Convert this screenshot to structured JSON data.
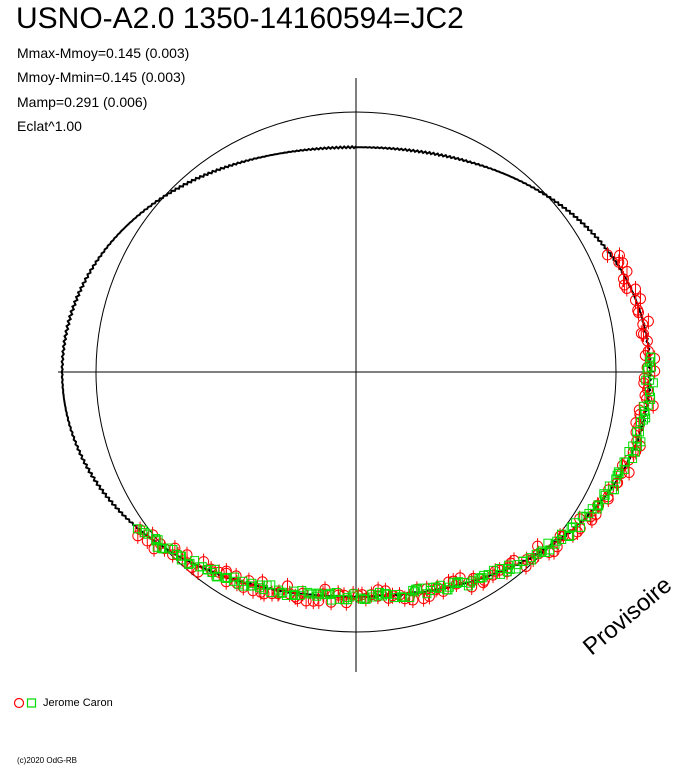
{
  "header": {
    "title": "USNO-A2.0 1350-14160594=JC2",
    "stats": [
      "Mmax-Mmoy=0.145 (0.003)",
      "Mmoy-Mmin=0.145 (0.003)",
      "Mamp=0.291 (0.006)",
      "Eclat^1.00"
    ]
  },
  "legend": {
    "label": "Jerome Caron"
  },
  "watermark": "Provisoire",
  "copyright": "(c)2020 OdG-RB",
  "colors": {
    "observer_circle": "#ff0000",
    "observer_square": "#00dd00",
    "axes": "#000000"
  },
  "chart_data": {
    "type": "scatter",
    "projection": "polar light curve (phase as angle, flux as radius)",
    "title": "USNO-A2.0 1350-14160594=JC2",
    "grid": false,
    "reference_circle": true,
    "model_curve": {
      "amplitude_mag": 0.291,
      "mmax_minus_mmoy": 0.145,
      "mmoy_minus_mmin": 0.145,
      "flux_exponent": 1.0
    },
    "coverage": {
      "red_circles_phase_range": [
        0.18,
        0.65
      ],
      "green_squares_phase_range": [
        0.24,
        0.65
      ]
    },
    "series": [
      {
        "name": "Jerome Caron",
        "marker": "circle",
        "color": "#ff0000"
      },
      {
        "name": "Jerome Caron",
        "marker": "square",
        "color": "#00dd00"
      }
    ]
  }
}
